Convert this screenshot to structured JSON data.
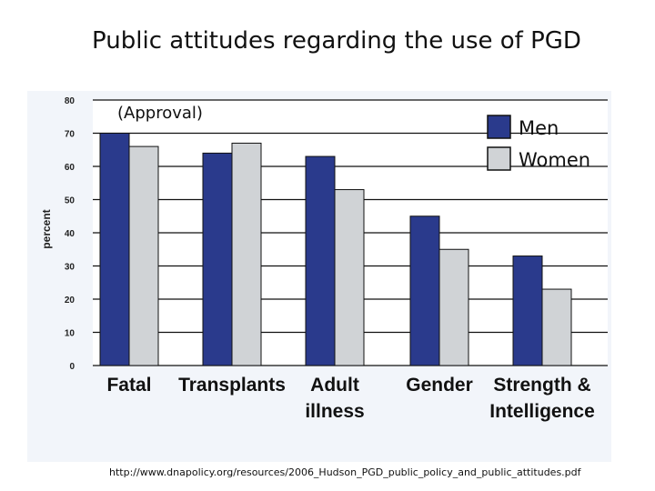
{
  "title": "Public attitudes regarding the use of PGD",
  "source_url": "http://www.dnapolicy.org/resources/2006_Hudson_PGD_public_policy_and_public_attitudes.pdf",
  "colors": {
    "men": "#2a3a8c",
    "women": "#d0d3d6",
    "grid": "#111111",
    "background": "#f2f5fa"
  },
  "chart_data": {
    "type": "bar",
    "title": "Public attitudes regarding the use of PGD",
    "subtitle": "(Approval)",
    "xlabel": "",
    "ylabel": "percent",
    "ylim": [
      0,
      80
    ],
    "yticks": [
      0,
      10,
      20,
      30,
      40,
      50,
      60,
      70,
      80
    ],
    "grid": true,
    "legend_position": "top-right",
    "categories": [
      [
        "Fatal"
      ],
      [
        "Transplants"
      ],
      [
        "Adult",
        "illness"
      ],
      [
        "Gender"
      ],
      [
        "Strength &",
        "Intelligence"
      ]
    ],
    "series": [
      {
        "name": "Men",
        "values": [
          70,
          64,
          63,
          45,
          33
        ]
      },
      {
        "name": "Women",
        "values": [
          66,
          67,
          53,
          35,
          23
        ]
      }
    ]
  }
}
